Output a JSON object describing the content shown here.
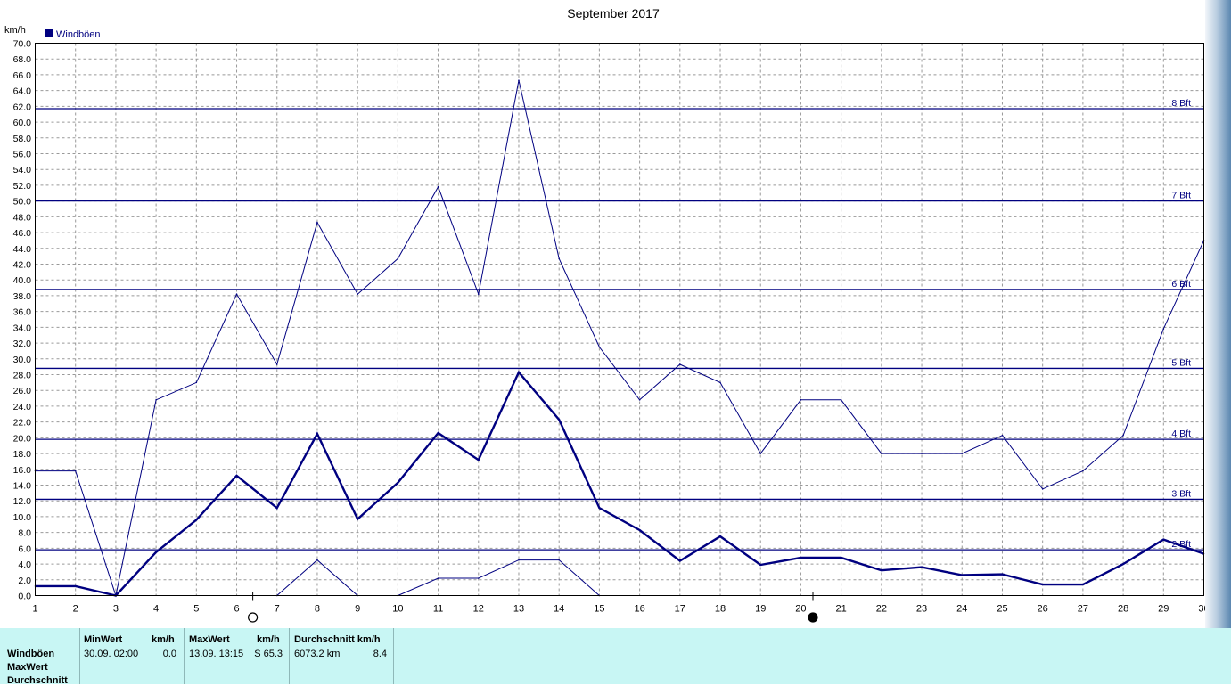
{
  "chart_data": {
    "type": "line",
    "title": "September 2017",
    "ylabel": "km/h",
    "legend": [
      {
        "label": "Windböen",
        "color": "#000080"
      }
    ],
    "legend_placement": "top-left",
    "x": [
      1,
      2,
      3,
      4,
      5,
      6,
      7,
      8,
      9,
      10,
      11,
      12,
      13,
      14,
      15,
      16,
      17,
      18,
      19,
      20,
      21,
      22,
      23,
      24,
      25,
      26,
      27,
      28,
      29,
      30
    ],
    "xlim": [
      1,
      30
    ],
    "ylim": [
      0,
      70
    ],
    "ytick_step": 2,
    "grid": true,
    "series": [
      {
        "role": "max",
        "stroke": "thin",
        "values": [
          15.8,
          15.8,
          0,
          24.8,
          27.0,
          38.2,
          29.3,
          47.3,
          38.2,
          42.7,
          51.8,
          38.2,
          65.3,
          42.7,
          31.5,
          24.8,
          29.3,
          27.0,
          18.0,
          24.8,
          24.8,
          18.0,
          18.0,
          18.0,
          20.3,
          13.5,
          15.8,
          20.3,
          33.8,
          45.0
        ]
      },
      {
        "role": "average",
        "stroke": "thick",
        "values": [
          1.2,
          1.2,
          0,
          5.5,
          9.6,
          15.2,
          11.1,
          20.5,
          9.7,
          14.3,
          20.6,
          17.2,
          28.3,
          22.3,
          11.1,
          8.3,
          4.4,
          7.5,
          3.9,
          4.8,
          4.8,
          3.2,
          3.6,
          2.6,
          2.7,
          1.4,
          1.4,
          4.0,
          7.1,
          5.3
        ]
      },
      {
        "role": "min",
        "stroke": "thin",
        "values": [
          null,
          null,
          null,
          null,
          null,
          null,
          0,
          4.5,
          0,
          0,
          2.2,
          2.2,
          4.5,
          4.5,
          0,
          null,
          null,
          null,
          null,
          null,
          null,
          null,
          null,
          null,
          null,
          null,
          null,
          null,
          null,
          null
        ]
      }
    ],
    "beaufort_lines": [
      {
        "label": "2 Bft",
        "value": 5.8
      },
      {
        "label": "3 Bft",
        "value": 12.2
      },
      {
        "label": "4 Bft",
        "value": 19.8
      },
      {
        "label": "5 Bft",
        "value": 28.8
      },
      {
        "label": "6 Bft",
        "value": 38.8
      },
      {
        "label": "7 Bft",
        "value": 50.0
      },
      {
        "label": "8 Bft",
        "value": 61.7
      }
    ],
    "moon_phases": [
      {
        "phase": "full-moon-icon",
        "x": 6.4
      },
      {
        "phase": "new-moon-icon",
        "x": 20.3
      }
    ]
  },
  "stats": {
    "row_labels": [
      "Windböen",
      "MaxWert",
      "Durchschnitt"
    ],
    "min_header": "MinWert",
    "min_unit": "km/h",
    "min_datetime": "30.09.  02:00",
    "min_value": "0.0",
    "max_header": "MaxWert",
    "max_unit": "km/h",
    "max_datetime": "13.09.  13:15",
    "max_value": "S 65.3",
    "avg_header": "Durchschnitt km/h",
    "avg_distance": "6073.2 km",
    "avg_value": "8.4"
  },
  "colors": {
    "series": "#000080",
    "beaufort": "#000080",
    "grid": "#999999",
    "panel": "#c8f6f4"
  }
}
